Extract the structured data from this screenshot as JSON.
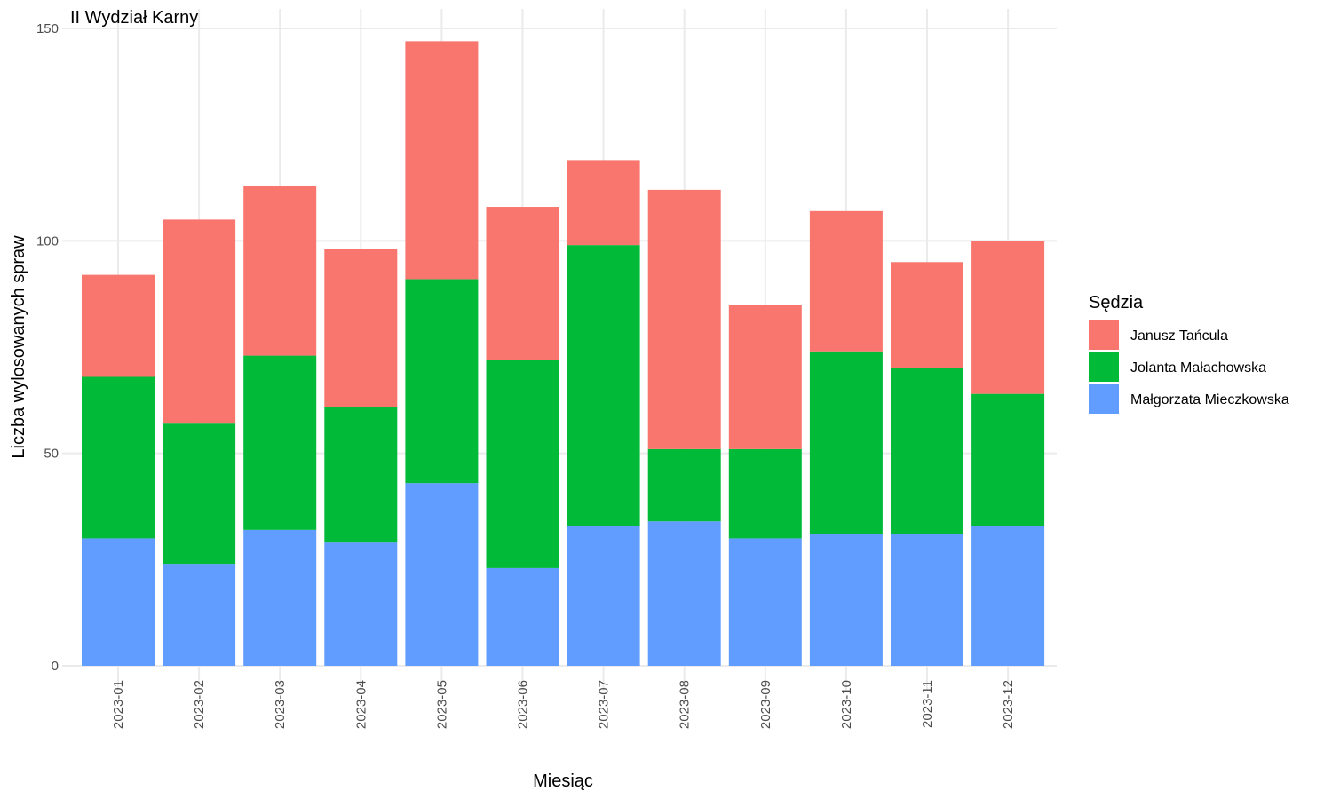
{
  "chart_data": {
    "type": "bar",
    "stacked": true,
    "title": "II Wydział Karny",
    "xlabel": "Miesiąc",
    "ylabel": "Liczba wylosowanych spraw",
    "ylim": [
      0,
      150
    ],
    "yticks": [
      0,
      50,
      100,
      150
    ],
    "grid": true,
    "legend_position": "right",
    "legend_title": "Sędzia",
    "categories": [
      "2023-01",
      "2023-02",
      "2023-03",
      "2023-04",
      "2023-05",
      "2023-06",
      "2023-07",
      "2023-08",
      "2023-09",
      "2023-10",
      "2023-11",
      "2023-12"
    ],
    "series": [
      {
        "name": "Małgorzata Mieczkowska",
        "color": "#619CFF",
        "values": [
          30,
          24,
          32,
          29,
          43,
          23,
          33,
          34,
          30,
          31,
          31,
          33
        ]
      },
      {
        "name": "Jolanta Małachowska",
        "color": "#00BA38",
        "values": [
          38,
          33,
          41,
          32,
          48,
          49,
          66,
          17,
          21,
          43,
          39,
          31
        ]
      },
      {
        "name": "Janusz Tańcula",
        "color": "#F8766D",
        "values": [
          24,
          48,
          40,
          37,
          56,
          36,
          20,
          61,
          34,
          33,
          25,
          36
        ]
      }
    ],
    "legend_order": [
      "Janusz Tańcula",
      "Jolanta Małachowska",
      "Małgorzata Mieczkowska"
    ]
  }
}
